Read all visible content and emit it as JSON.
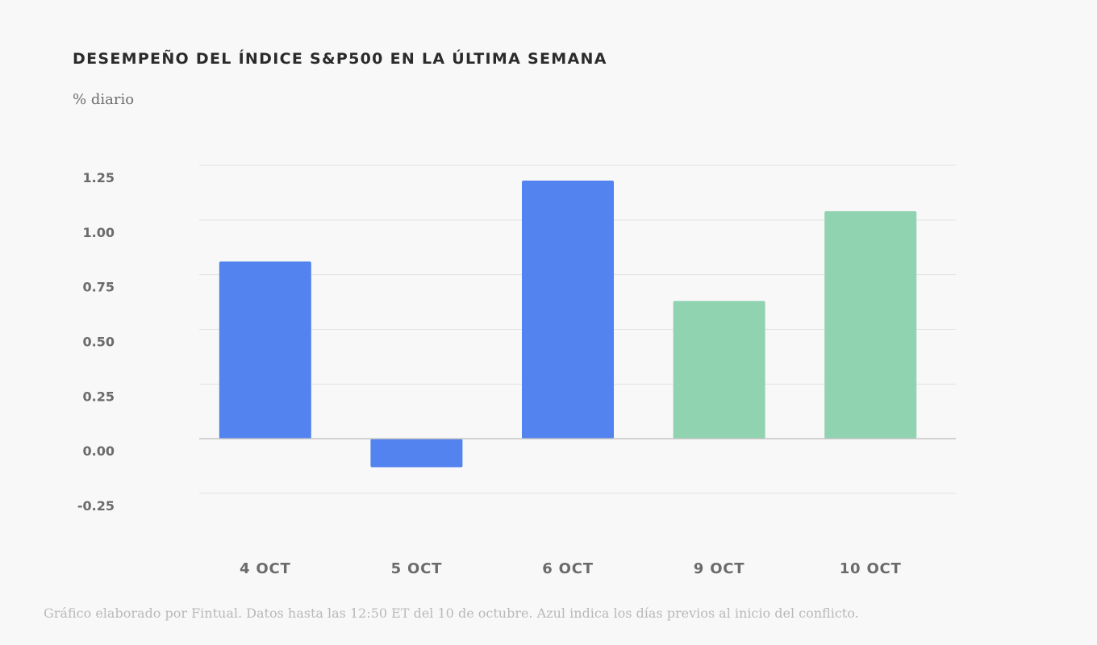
{
  "chart_data": {
    "type": "bar",
    "title": "DESEMPEÑO DEL ÍNDICE S&P500 EN LA ÚLTIMA SEMANA",
    "ylabel": "% diario",
    "xlabel": "",
    "categories": [
      "4 OCT",
      "5 OCT",
      "6 OCT",
      "9 OCT",
      "10 OCT"
    ],
    "values": [
      0.81,
      -0.13,
      1.18,
      0.63,
      1.04
    ],
    "bar_colors": [
      "#5283ef",
      "#5283ef",
      "#5283ef",
      "#8fd3b0",
      "#8fd3b0"
    ],
    "ylim": [
      -0.25,
      1.25
    ],
    "yticks": [
      -0.25,
      0.0,
      0.25,
      0.5,
      0.75,
      1.0,
      1.25
    ],
    "ytick_labels": [
      "-0.25",
      "0.00",
      "0.25",
      "0.50",
      "0.75",
      "1.00",
      "1.25"
    ],
    "grid": true,
    "footnote": "Gráfico elaborado por Fintual. Datos hasta las 12:50 ET del 10 de octubre. Azul indica los días previos al inicio del conflicto."
  },
  "colors": {
    "pre_conflict": "#5283ef",
    "post_conflict": "#8fd3b0",
    "gridline": "#e2e2e2",
    "zero_line": "#c4c4c4"
  }
}
